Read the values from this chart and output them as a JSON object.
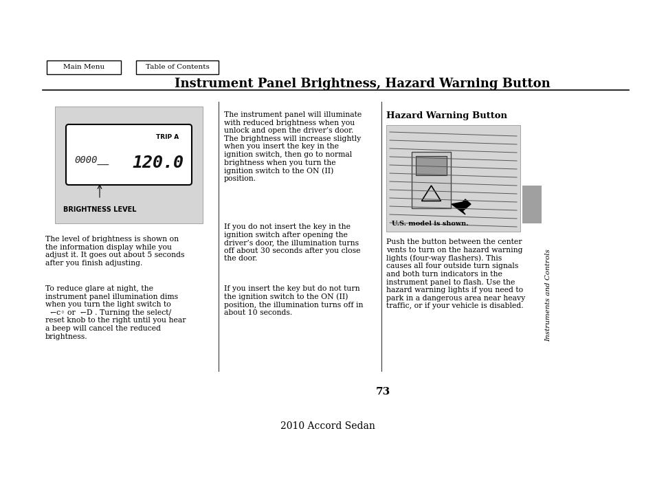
{
  "bg_color": "#ffffff",
  "title": "Instrument Panel Brightness, Hazard Warning Button",
  "page_number": "73",
  "footer_text": "2010 Accord Sedan",
  "nav_buttons": [
    "Main Menu",
    "Table of Contents"
  ],
  "sidebar_text": "Instruments and Controls",
  "sidebar_color": "#a0a0a0",
  "left_image_bg": "#d5d5d5",
  "right_image_bg": "#d5d5d5",
  "display_label": "BRIGHTNESS LEVEL",
  "trip_label": "TRIP A",
  "us_model_caption": "U.S. model is shown.",
  "hazard_section_title": "Hazard Warning Button",
  "left_para1": "The level of brightness is shown on\nthe information display while you\nadjust it. It goes out about 5 seconds\nafter you finish adjusting.",
  "left_para2": "To reduce glare at night, the\ninstrument panel illumination dims\nwhen you turn the light switch to\n  ↽c◦ or  ↽D . Turning the select/\nreset knob to the right until you hear\na beep will cancel the reduced\nbrightness.",
  "middle_para1": "The instrument panel will illuminate\nwith reduced brightness when you\nunlock and open the driver’s door.\nThe brightness will increase slightly\nwhen you insert the key in the\nignition switch, then go to normal\nbrightness when you turn the\nignition switch to the ON (II)\nposition.",
  "middle_para2": "If you do not insert the key in the\nignition switch after opening the\ndriver’s door, the illumination turns\noff about 30 seconds after you close\nthe door.",
  "middle_para3": "If you insert the key but do not turn\nthe ignition switch to the ON (II)\nposition, the illumination turns off in\nabout 10 seconds.",
  "right_para": "Push the button between the center\nvents to turn on the hazard warning\nlights (four-way flashers). This\ncauses all four outside turn signals\nand both turn indicators in the\ninstrument panel to flash. Use the\nhazard warning lights if you need to\npark in a dangerous area near heavy\ntraffic, or if your vehicle is disabled."
}
